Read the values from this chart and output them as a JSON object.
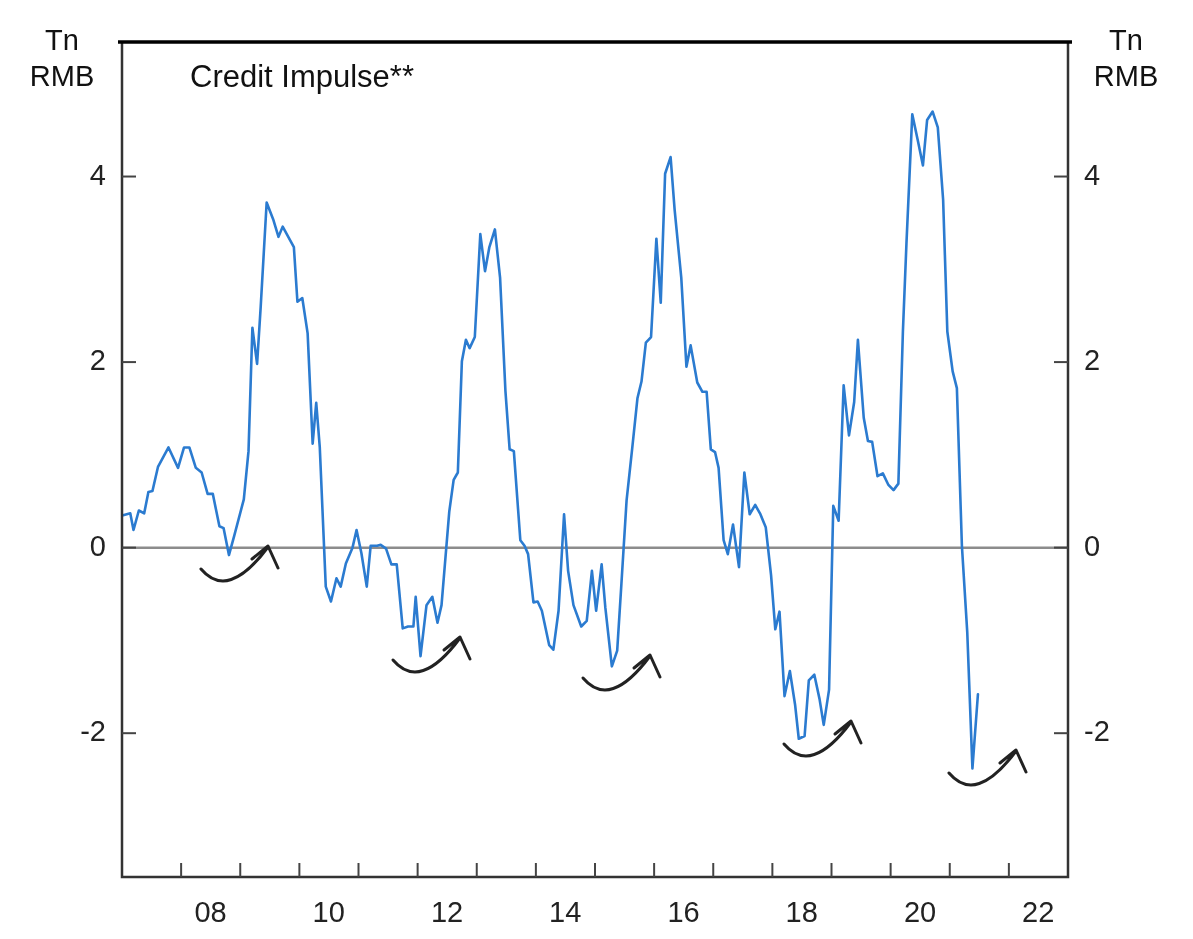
{
  "chart_data": {
    "type": "line",
    "title": "Credit Impulse**",
    "ylabel": "Tn\nRMB",
    "y2label": "Tn\nRMB",
    "x": [
      "2007-01-08",
      "2007-02-21",
      "2007-03-13",
      "2007-04-15",
      "2007-05-18",
      "2007-06-13",
      "2007-07-08",
      "2007-08-11",
      "2007-10-15",
      "2007-12-13",
      "2008-01-19",
      "2008-02-21",
      "2008-04-01",
      "2008-05-07",
      "2008-06-13",
      "2008-07-15",
      "2008-08-25",
      "2008-09-20",
      "2008-10-23",
      "2008-11-25",
      "2009-01-23",
      "2009-02-21",
      "2009-03-17",
      "2009-04-15",
      "2009-05-07",
      "2009-06-13",
      "2009-07-23",
      "2009-08-25",
      "2009-09-20",
      "2009-11-28",
      "2009-12-20",
      "2010-01-19",
      "2010-02-21",
      "2010-03-24",
      "2010-04-15",
      "2010-05-07",
      "2010-06-13",
      "2010-07-15",
      "2010-08-18",
      "2010-09-13",
      "2010-10-15",
      "2010-11-25",
      "2010-12-20",
      "2011-01-19",
      "2011-02-21",
      "2011-03-17",
      "2011-04-26",
      "2011-05-18",
      "2011-06-20",
      "2011-07-23",
      "2011-08-25",
      "2011-10-01",
      "2011-11-03",
      "2011-12-06",
      "2011-12-20",
      "2012-01-19",
      "2012-02-25",
      "2012-04-01",
      "2012-05-03",
      "2012-05-28",
      "2012-07-15",
      "2012-08-11",
      "2012-09-06",
      "2012-10-01",
      "2012-10-26",
      "2012-11-18",
      "2012-12-20",
      "2013-01-23",
      "2013-02-21",
      "2013-03-20",
      "2013-04-23",
      "2013-05-25",
      "2013-06-27",
      "2013-07-23",
      "2013-08-18",
      "2013-09-27",
      "2013-10-23",
      "2013-11-14",
      "2013-12-17",
      "2014-01-12",
      "2014-02-07",
      "2014-03-24",
      "2014-04-19",
      "2014-05-21",
      "2014-06-24",
      "2014-07-19",
      "2014-08-21",
      "2014-10-08",
      "2014-11-11",
      "2014-12-13",
      "2015-01-08",
      "2015-02-11",
      "2015-03-06",
      "2015-04-15",
      "2015-05-18",
      "2015-06-13",
      "2015-07-15",
      "2015-08-18",
      "2015-09-20",
      "2015-10-15",
      "2015-11-11",
      "2015-12-13",
      "2016-01-15",
      "2016-02-11",
      "2016-03-09",
      "2016-04-12",
      "2016-05-07",
      "2016-06-17",
      "2016-07-19",
      "2016-08-14",
      "2016-09-24",
      "2016-10-26",
      "2016-11-21",
      "2016-12-17",
      "2017-01-12",
      "2017-02-03",
      "2017-03-06",
      "2017-04-01",
      "2017-05-03",
      "2017-06-09",
      "2017-07-12",
      "2017-08-14",
      "2017-09-17",
      "2017-10-19",
      "2017-11-21",
      "2017-12-24",
      "2018-01-19",
      "2018-02-14",
      "2018-03-17",
      "2018-04-19",
      "2018-05-21",
      "2018-06-13",
      "2018-07-19",
      "2018-08-14",
      "2018-09-17",
      "2018-10-19",
      "2018-11-14",
      "2018-12-17",
      "2019-01-12",
      "2019-02-14",
      "2019-03-17",
      "2019-04-19",
      "2019-05-21",
      "2019-06-13",
      "2019-07-19",
      "2019-08-14",
      "2019-09-09",
      "2019-10-12",
      "2019-11-14",
      "2019-12-17",
      "2020-01-19",
      "2020-02-18",
      "2020-03-17",
      "2020-04-08",
      "2020-05-14",
      "2020-06-17",
      "2020-07-19",
      "2020-08-14",
      "2020-09-17",
      "2020-10-19",
      "2020-11-21",
      "2020-12-17",
      "2021-01-19",
      "2021-02-14",
      "2021-03-17",
      "2021-04-19",
      "2021-05-21",
      "2021-06-24"
    ],
    "series": [
      {
        "color": "#2b7bd0",
        "values": [
          0.35,
          0.37,
          0.19,
          0.4,
          0.37,
          0.6,
          0.61,
          0.87,
          1.08,
          0.86,
          1.08,
          1.08,
          0.86,
          0.81,
          0.58,
          0.58,
          0.23,
          0.21,
          -0.08,
          0.13,
          0.52,
          1.04,
          2.37,
          1.98,
          2.59,
          3.72,
          3.54,
          3.35,
          3.46,
          3.24,
          2.65,
          2.69,
          2.31,
          1.12,
          1.56,
          1.08,
          -0.42,
          -0.58,
          -0.33,
          -0.42,
          -0.17,
          0.0,
          0.19,
          -0.06,
          -0.42,
          0.02,
          0.02,
          0.03,
          -0.01,
          -0.18,
          -0.18,
          -0.87,
          -0.85,
          -0.85,
          -0.53,
          -1.17,
          -0.62,
          -0.53,
          -0.81,
          -0.62,
          0.39,
          0.73,
          0.81,
          2.01,
          2.24,
          2.15,
          2.27,
          3.38,
          2.98,
          3.24,
          3.43,
          2.91,
          1.69,
          1.06,
          1.04,
          0.08,
          0.02,
          -0.07,
          -0.59,
          -0.58,
          -0.68,
          -1.05,
          -1.1,
          -0.68,
          0.36,
          -0.25,
          -0.62,
          -0.85,
          -0.79,
          -0.25,
          -0.68,
          -0.18,
          -0.65,
          -1.28,
          -1.11,
          -0.39,
          0.51,
          1.06,
          1.61,
          1.79,
          2.21,
          2.27,
          3.33,
          2.64,
          4.03,
          4.21,
          3.64,
          2.91,
          1.95,
          2.18,
          1.78,
          1.68,
          1.68,
          1.06,
          1.03,
          0.86,
          0.08,
          -0.07,
          0.25,
          -0.21,
          0.81,
          0.36,
          0.46,
          0.36,
          0.22,
          -0.3,
          -0.88,
          -0.69,
          -1.6,
          -1.33,
          -1.69,
          -2.06,
          -2.03,
          -1.43,
          -1.37,
          -1.63,
          -1.91,
          -1.53,
          0.45,
          0.29,
          1.75,
          1.21,
          1.57,
          2.24,
          1.4,
          1.15,
          1.14,
          0.77,
          0.8,
          0.68,
          0.62,
          0.69,
          2.33,
          3.28,
          4.67,
          4.39,
          4.12,
          4.61,
          4.7,
          4.53,
          3.75,
          2.33,
          1.9,
          1.72,
          0.02,
          -0.91,
          -2.38,
          -1.58
        ]
      }
    ],
    "xlim": [
      "2007-01-01",
      "2023-01-01"
    ],
    "xticks": [
      {
        "value": "2008-01-01",
        "label": null
      },
      {
        "value": "2008-07-01",
        "label": "08"
      },
      {
        "value": "2009-01-01",
        "label": null
      },
      {
        "value": "2010-01-01",
        "label": null
      },
      {
        "value": "2010-07-01",
        "label": "10"
      },
      {
        "value": "2011-01-01",
        "label": null
      },
      {
        "value": "2012-01-01",
        "label": null
      },
      {
        "value": "2012-07-01",
        "label": "12"
      },
      {
        "value": "2013-01-01",
        "label": null
      },
      {
        "value": "2014-01-01",
        "label": null
      },
      {
        "value": "2014-07-01",
        "label": "14"
      },
      {
        "value": "2015-01-01",
        "label": null
      },
      {
        "value": "2016-01-01",
        "label": null
      },
      {
        "value": "2016-07-01",
        "label": "16"
      },
      {
        "value": "2017-01-01",
        "label": null
      },
      {
        "value": "2018-01-01",
        "label": null
      },
      {
        "value": "2018-07-01",
        "label": "18"
      },
      {
        "value": "2019-01-01",
        "label": null
      },
      {
        "value": "2020-01-01",
        "label": null
      },
      {
        "value": "2020-07-01",
        "label": "20"
      },
      {
        "value": "2021-01-01",
        "label": null
      },
      {
        "value": "2022-01-01",
        "label": null
      },
      {
        "value": "2022-07-01",
        "label": "22"
      }
    ],
    "ylim": [
      -3.55,
      5.45
    ],
    "yticks": [
      -2,
      0,
      2,
      4
    ],
    "y2lim": [
      -3.55,
      5.45
    ],
    "y2ticks": [
      -2,
      0,
      2,
      4
    ],
    "ref_lines": [
      {
        "axis": "y",
        "value": 0,
        "color": "#8c8c8c"
      }
    ],
    "legend": false,
    "marker": "none",
    "line_style": "solid"
  }
}
